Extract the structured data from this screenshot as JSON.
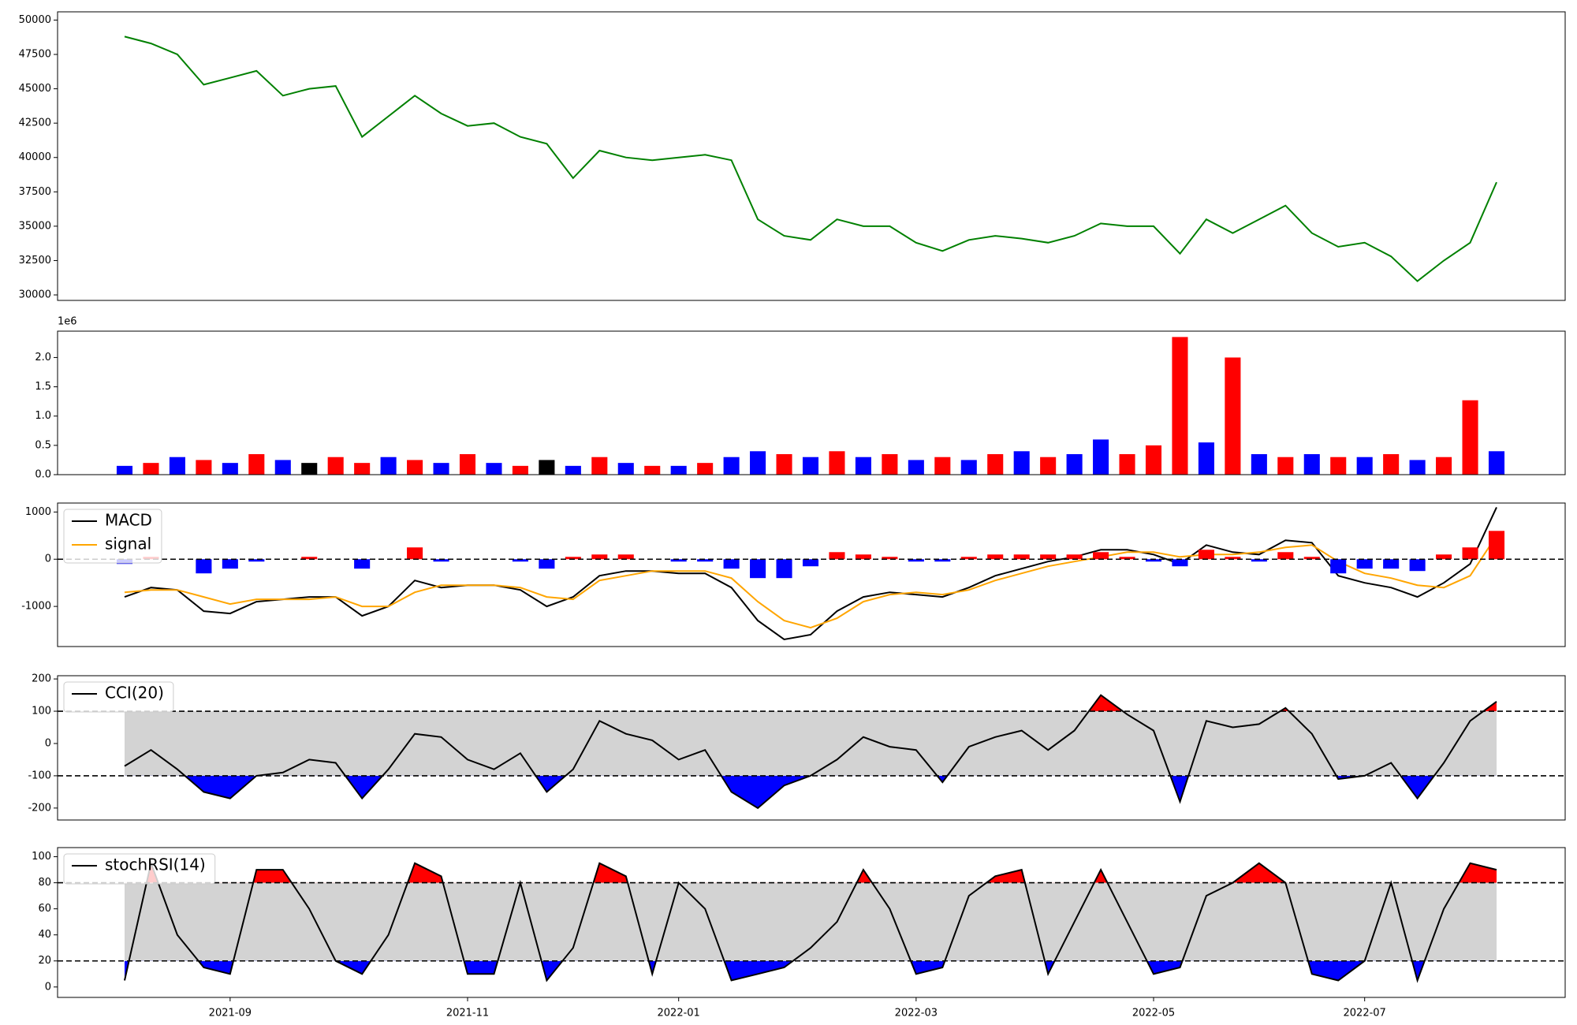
{
  "chart_data": [
    {
      "type": "line",
      "ylim": [
        29600,
        50600
      ],
      "yticks": [
        30000,
        32500,
        35000,
        37500,
        40000,
        42500,
        45000,
        47500,
        50000
      ],
      "series": [
        {
          "color": "#008000",
          "values": [
            48800,
            48300,
            47500,
            45300,
            45800,
            46300,
            44500,
            45000,
            45200,
            41500,
            43000,
            44500,
            43200,
            42300,
            42500,
            41500,
            41000,
            38500,
            40500,
            40000,
            39800,
            40000,
            40200,
            39800,
            35500,
            34300,
            34000,
            35500,
            35000,
            35000,
            33800,
            33200,
            34000,
            34300,
            34100,
            33800,
            34300,
            35200,
            35000,
            35000,
            33000,
            35500,
            34500,
            35500,
            36500,
            34500,
            33500,
            33800,
            32800,
            31000,
            32500,
            33800,
            38200
          ]
        }
      ]
    },
    {
      "type": "bar",
      "ylim": [
        0,
        2450000
      ],
      "offset_text": "1e6",
      "yticks": [
        {
          "value": 0,
          "label": "0.0"
        },
        {
          "value": 500000,
          "label": "0.5"
        },
        {
          "value": 1000000,
          "label": "1.0"
        },
        {
          "value": 1500000,
          "label": "1.5"
        },
        {
          "value": 2000000,
          "label": "2.0"
        }
      ],
      "series": [
        {
          "values": [
            150000,
            200000,
            300000,
            250000,
            200000,
            350000,
            250000,
            200000,
            300000,
            200000,
            300000,
            250000,
            200000,
            350000,
            200000,
            150000,
            250000,
            150000,
            300000,
            200000,
            150000,
            150000,
            200000,
            300000,
            400000,
            350000,
            300000,
            400000,
            300000,
            350000,
            250000,
            300000,
            250000,
            350000,
            400000,
            300000,
            350000,
            600000,
            350000,
            500000,
            2350000,
            550000,
            2000000,
            350000,
            300000,
            350000,
            300000,
            300000,
            350000,
            250000,
            300000,
            1270000,
            400000
          ],
          "colors": [
            "blue",
            "red",
            "blue",
            "red",
            "blue",
            "red",
            "blue",
            "black",
            "red",
            "red",
            "blue",
            "red",
            "blue",
            "red",
            "blue",
            "red",
            "black",
            "blue",
            "red",
            "blue",
            "red",
            "blue",
            "red",
            "blue",
            "blue",
            "red",
            "blue",
            "red",
            "blue",
            "red",
            "blue",
            "red",
            "blue",
            "red",
            "blue",
            "red",
            "blue",
            "blue",
            "red",
            "red",
            "red",
            "blue",
            "red",
            "blue",
            "red",
            "blue",
            "red",
            "blue",
            "red",
            "blue",
            "red",
            "red",
            "blue"
          ]
        }
      ]
    },
    {
      "type": "combo",
      "ylim": [
        -1850,
        1190
      ],
      "yticks": [
        -1000,
        0,
        1000
      ],
      "reference_lines": [
        0
      ],
      "legend": "upper left",
      "series": [
        {
          "name": "MACD",
          "type": "line",
          "color": "black",
          "values": [
            -800,
            -600,
            -650,
            -1100,
            -1150,
            -900,
            -850,
            -800,
            -800,
            -1200,
            -1000,
            -450,
            -600,
            -550,
            -550,
            -650,
            -1000,
            -800,
            -350,
            -250,
            -250,
            -300,
            -300,
            -600,
            -1300,
            -1700,
            -1600,
            -1100,
            -800,
            -700,
            -750,
            -800,
            -600,
            -350,
            -200,
            -50,
            50,
            200,
            200,
            100,
            -100,
            300,
            150,
            100,
            400,
            350,
            -350,
            -500,
            -600,
            -800,
            -500,
            -100,
            1100
          ]
        },
        {
          "name": "signal",
          "type": "line",
          "color": "orange",
          "values": [
            -700,
            -650,
            -650,
            -800,
            -950,
            -850,
            -850,
            -850,
            -800,
            -1000,
            -1000,
            -700,
            -550,
            -550,
            -550,
            -600,
            -800,
            -850,
            -450,
            -350,
            -250,
            -250,
            -250,
            -400,
            -900,
            -1300,
            -1450,
            -1250,
            -900,
            -750,
            -700,
            -750,
            -650,
            -450,
            -300,
            -150,
            -50,
            50,
            150,
            150,
            50,
            100,
            100,
            150,
            250,
            300,
            -50,
            -300,
            -400,
            -550,
            -600,
            -350,
            500
          ]
        },
        {
          "type": "bar",
          "pos_color": "red",
          "neg_color": "blue",
          "values": [
            -100,
            50,
            0,
            -300,
            -200,
            -50,
            0,
            50,
            0,
            -200,
            0,
            250,
            -50,
            0,
            0,
            -50,
            -200,
            50,
            100,
            100,
            0,
            -50,
            -50,
            -200,
            -400,
            -400,
            -150,
            150,
            100,
            50,
            -50,
            -50,
            50,
            100,
            100,
            100,
            100,
            150,
            50,
            -50,
            -150,
            200,
            50,
            -50,
            150,
            50,
            -300,
            -200,
            -200,
            -250,
            100,
            250,
            600
          ]
        }
      ]
    },
    {
      "type": "band",
      "ylim": [
        -237,
        210
      ],
      "yticks": [
        -200,
        -100,
        0,
        100,
        200
      ],
      "reference_lines": [
        100,
        -100
      ],
      "band_color": "lightgray",
      "above_color": "red",
      "below_color": "blue",
      "legend": "upper left",
      "series": [
        {
          "name": "CCI(20)",
          "color": "black",
          "values": [
            -70,
            -20,
            -80,
            -150,
            -170,
            -100,
            -90,
            -50,
            -60,
            -170,
            -80,
            30,
            20,
            -50,
            -80,
            -30,
            -150,
            -80,
            70,
            30,
            10,
            -50,
            -20,
            -150,
            -200,
            -130,
            -100,
            -50,
            20,
            -10,
            -20,
            -120,
            -10,
            20,
            40,
            -20,
            40,
            150,
            90,
            40,
            -180,
            70,
            50,
            60,
            110,
            30,
            -110,
            -100,
            -60,
            -170,
            -60,
            70,
            130
          ]
        }
      ]
    },
    {
      "type": "band",
      "ylim": [
        -8,
        107
      ],
      "yticks": [
        0,
        20,
        40,
        60,
        80,
        100
      ],
      "reference_lines": [
        80,
        20
      ],
      "band_color": "lightgray",
      "above_color": "red",
      "below_color": "blue",
      "legend": "upper left",
      "series": [
        {
          "name": "stochRSI(14)",
          "color": "black",
          "values": [
            5,
            95,
            40,
            15,
            10,
            90,
            90,
            60,
            20,
            10,
            40,
            95,
            85,
            10,
            10,
            80,
            5,
            30,
            95,
            85,
            10,
            80,
            60,
            5,
            10,
            15,
            30,
            50,
            90,
            60,
            10,
            15,
            70,
            85,
            90,
            10,
            50,
            90,
            50,
            10,
            15,
            70,
            80,
            95,
            80,
            10,
            5,
            20,
            80,
            5,
            60,
            95,
            90
          ]
        }
      ],
      "categories": [
        null,
        null,
        null,
        null,
        "2021-09",
        null,
        null,
        null,
        null,
        null,
        null,
        null,
        null,
        "2021-11",
        null,
        null,
        null,
        null,
        null,
        null,
        null,
        "2022-01",
        null,
        null,
        null,
        null,
        null,
        null,
        null,
        null,
        "2022-03",
        null,
        null,
        null,
        null,
        null,
        null,
        null,
        null,
        "2022-05",
        null,
        null,
        null,
        null,
        null,
        null,
        null,
        "2022-07",
        null,
        null,
        null,
        null,
        null
      ]
    }
  ]
}
